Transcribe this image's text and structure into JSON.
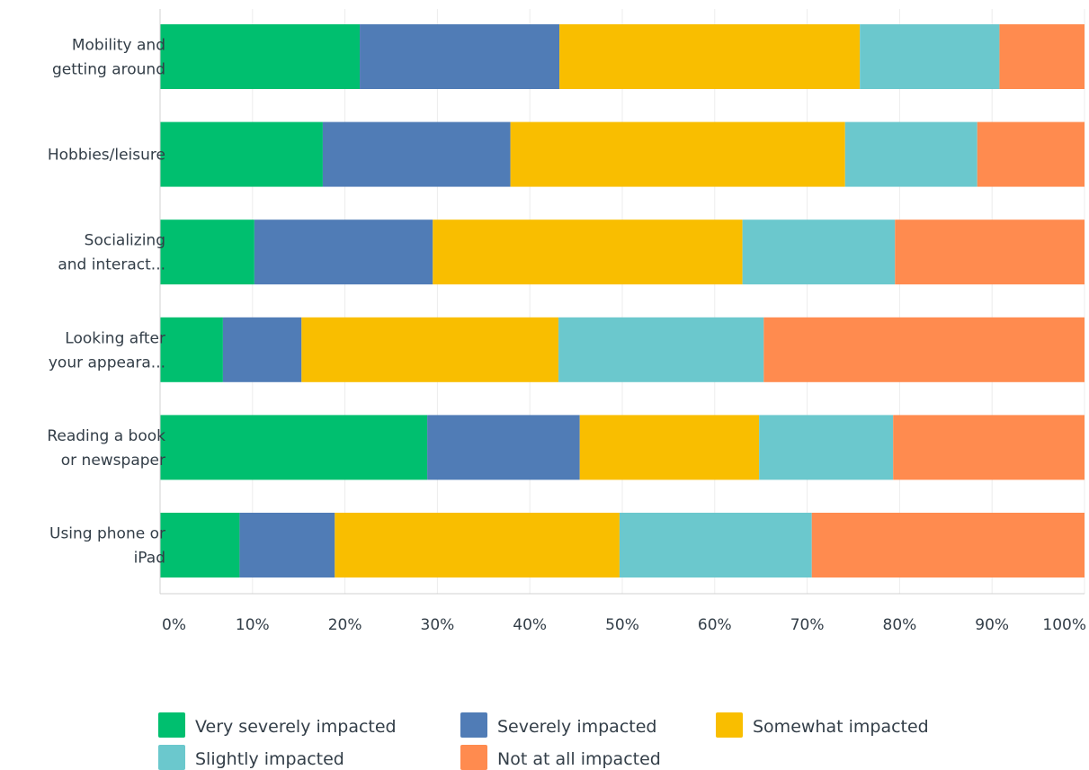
{
  "chart_data": {
    "type": "bar",
    "orientation": "horizontal",
    "stacked": true,
    "categories": [
      [
        "Mobility and",
        "getting around"
      ],
      [
        "Hobbies/leisure"
      ],
      [
        "Socializing",
        "and interact..."
      ],
      [
        "Looking after",
        "your appeara..."
      ],
      [
        "Reading a book",
        "or newspaper"
      ],
      [
        "Using phone or",
        "iPad"
      ]
    ],
    "series": [
      {
        "name": "Very severely impacted",
        "color": "#00bf6f",
        "values": [
          21.6,
          17.6,
          10.2,
          6.8,
          28.9,
          8.6
        ]
      },
      {
        "name": "Severely impacted",
        "color": "#507cb6",
        "values": [
          21.6,
          20.3,
          19.3,
          8.5,
          16.5,
          10.3
        ]
      },
      {
        "name": "Somewhat impacted",
        "color": "#f9be00",
        "values": [
          32.5,
          36.2,
          33.5,
          27.8,
          19.4,
          30.8
        ]
      },
      {
        "name": "Slightly impacted",
        "color": "#6bc8cd",
        "values": [
          15.1,
          14.3,
          16.5,
          22.2,
          14.5,
          20.8
        ]
      },
      {
        "name": "Not at all impacted",
        "color": "#ff8b4f",
        "values": [
          9.2,
          11.6,
          20.5,
          34.7,
          20.7,
          29.5
        ]
      }
    ],
    "xlim": [
      0,
      100
    ],
    "xticks": [
      "0%",
      "10%",
      "20%",
      "30%",
      "40%",
      "50%",
      "60%",
      "70%",
      "80%",
      "90%",
      "100%"
    ],
    "grid": true,
    "legend_position": "bottom",
    "title": "",
    "xlabel": "",
    "ylabel": ""
  }
}
